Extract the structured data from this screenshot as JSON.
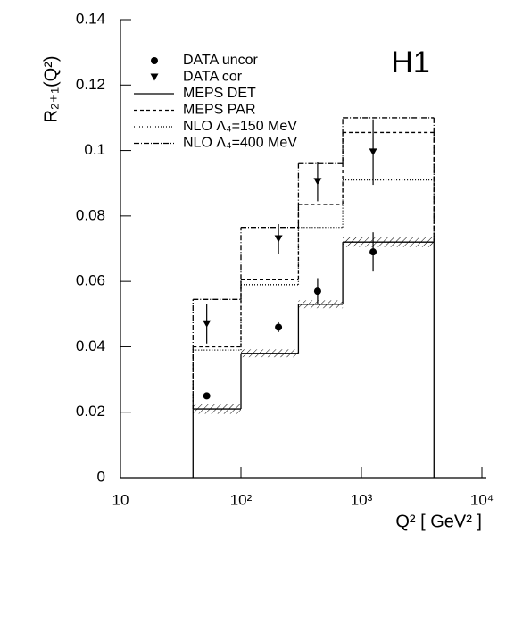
{
  "chart_data": {
    "type": "histogram",
    "annotation": "H1",
    "ylabel": "R₂₊₁(Q²)",
    "xlabel": "Q²  [ GeV² ]",
    "log_x": true,
    "xlim": [
      10,
      10000
    ],
    "ylim": [
      0,
      0.14
    ],
    "xticks": [
      10,
      {
        "value": 100,
        "label": "10²"
      },
      {
        "value": 1000,
        "label": "10³"
      },
      {
        "value": 10000,
        "label": "10⁴"
      }
    ],
    "yticks": [
      0,
      0.02,
      0.04,
      0.06,
      0.08,
      0.1,
      0.12,
      0.14
    ],
    "bins": [
      40,
      100,
      300,
      700,
      4000
    ],
    "points": [
      {
        "name": "DATA uncor",
        "marker": "circle",
        "color": "#000000",
        "x": [
          52,
          205,
          433,
          1250
        ],
        "values": [
          0.025,
          0.046,
          0.057,
          0.069
        ],
        "errors": [
          0.0005,
          0.0015,
          0.004,
          0.006
        ]
      },
      {
        "name": "DATA cor",
        "marker": "triangle",
        "color": "#000000",
        "x": [
          52,
          205,
          433,
          1250
        ],
        "values": [
          0.047,
          0.073,
          0.0905,
          0.0995
        ],
        "errors": [
          0.006,
          0.0045,
          0.006,
          0.01
        ]
      }
    ],
    "series": [
      {
        "name": "MEPS DET",
        "color": "#000000",
        "dash": "none",
        "values": [
          0.021,
          0.038,
          0.053,
          0.072
        ],
        "errors": [
          0.0015,
          0.0012,
          0.0012,
          0.0015
        ]
      },
      {
        "name": "MEPS PAR",
        "color": "#000000",
        "dash": "4 3",
        "values": [
          0.04,
          0.0605,
          0.0835,
          0.1055
        ]
      },
      {
        "name": "NLO Λ₄=150 MeV",
        "color": "#000000",
        "dash": "1 2",
        "values": [
          0.039,
          0.059,
          0.0765,
          0.091
        ]
      },
      {
        "name": "NLO Λ₄=400 MeV",
        "color": "#000000",
        "dash": "6 2 1 2",
        "values": [
          0.0545,
          0.0765,
          0.096,
          0.11
        ]
      }
    ]
  }
}
